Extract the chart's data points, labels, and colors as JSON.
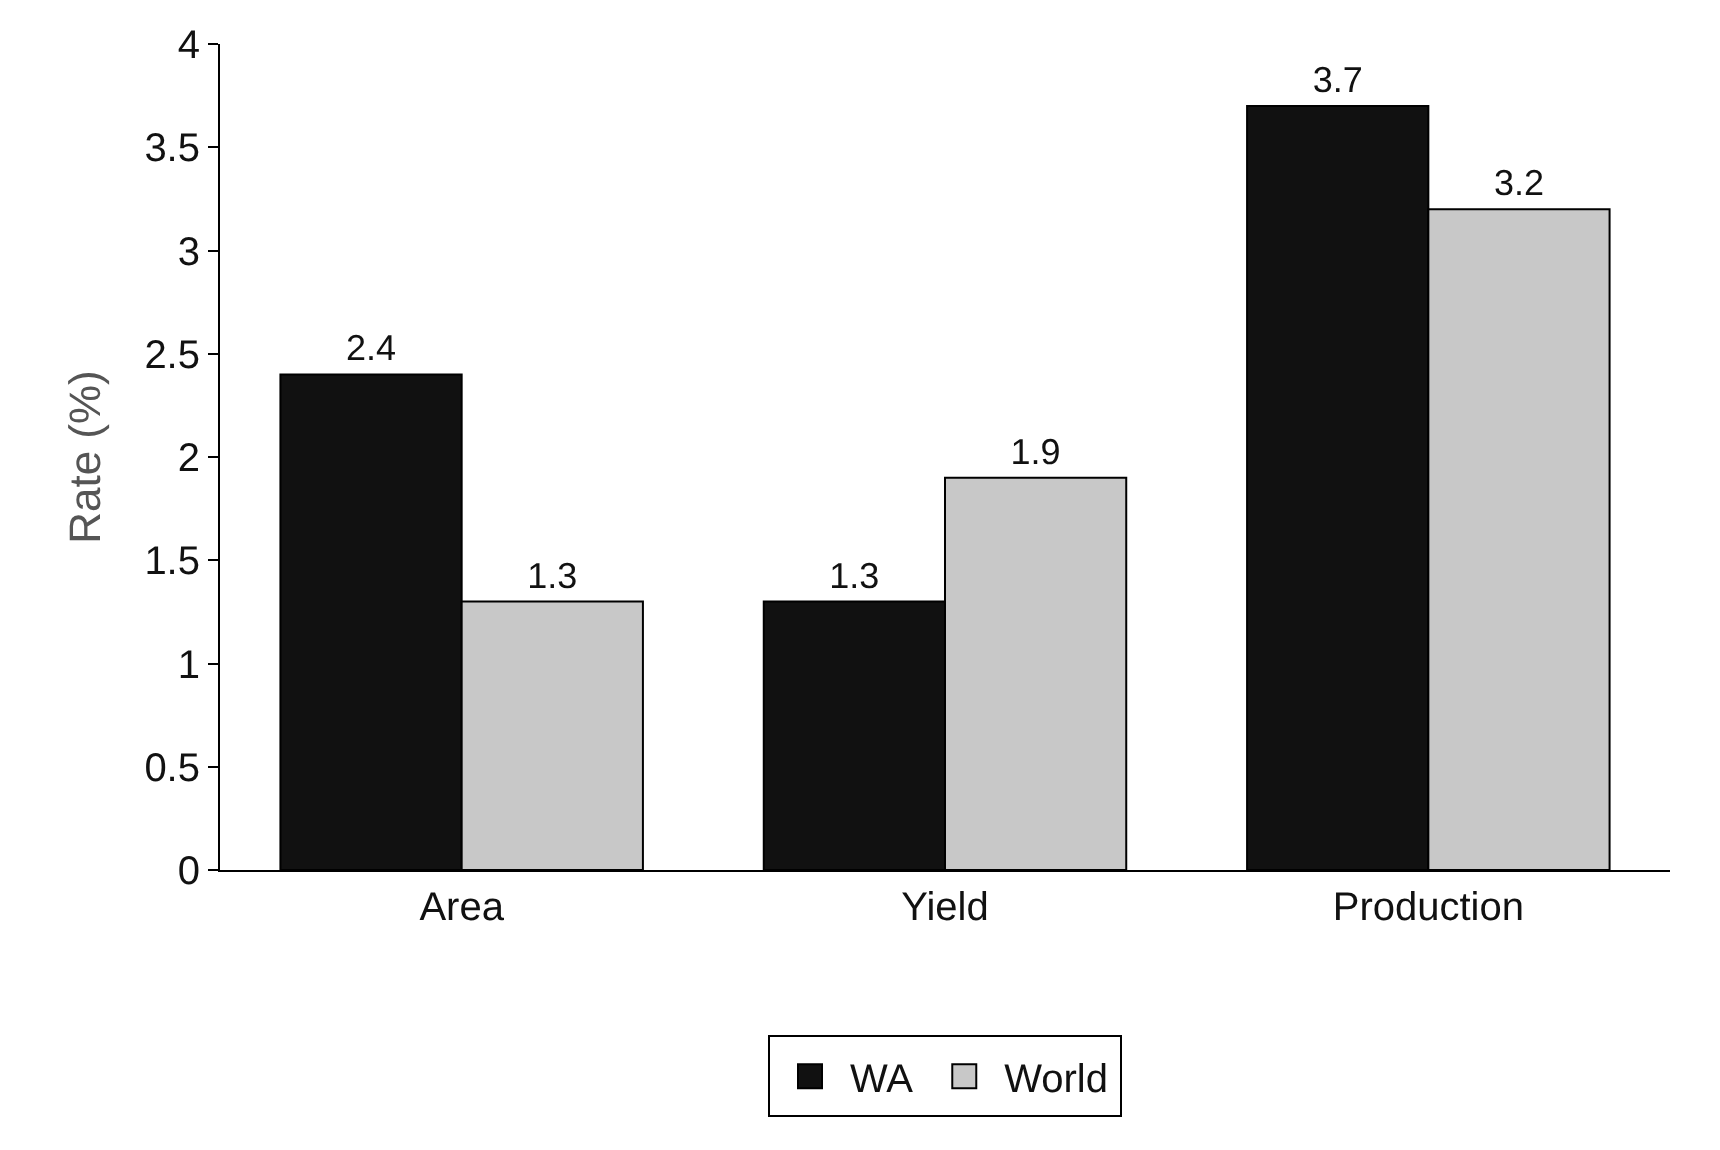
{
  "chart_data": {
    "type": "bar",
    "ylabel": "Rate (%)",
    "categories": [
      "Area",
      "Yield",
      "Production"
    ],
    "series": [
      {
        "name": "WA",
        "color": "#111111",
        "values": [
          2.4,
          1.3,
          3.7
        ]
      },
      {
        "name": "World",
        "color": "#c8c8c8",
        "values": [
          1.3,
          1.9,
          3.2
        ]
      }
    ],
    "ylim": [
      0,
      4
    ],
    "yticks": [
      0,
      0.5,
      1,
      1.5,
      2,
      2.5,
      3,
      3.5,
      4
    ],
    "grid": false,
    "legend": "bottom",
    "data_labels": true
  }
}
